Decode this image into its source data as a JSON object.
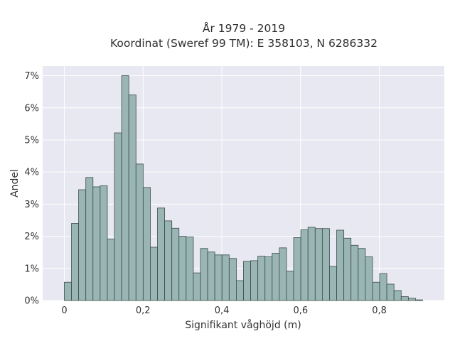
{
  "chart_data": {
    "type": "bar",
    "title_lines": [
      "År 1979 - 2019",
      "Koordinat (Sweref 99 TM): E 358103, N 6286332"
    ],
    "xlabel": "Signifikant våghöjd (m)",
    "ylabel": "Andel",
    "xlim": [
      -0.055,
      0.965
    ],
    "ylim": [
      0,
      7.3
    ],
    "x_ticks": [
      0,
      0.2,
      0.4,
      0.6,
      0.8
    ],
    "x_tick_labels": [
      "0",
      "0,2",
      "0,4",
      "0,6",
      "0,8"
    ],
    "y_ticks": [
      0,
      1,
      2,
      3,
      4,
      5,
      6,
      7
    ],
    "y_tick_labels": [
      "0%",
      "1%",
      "2%",
      "3%",
      "4%",
      "5%",
      "6%",
      "7%"
    ],
    "grid": true,
    "bin_start": 0,
    "bin_width": 0.0182,
    "values": [
      0.57,
      2.4,
      3.45,
      3.83,
      3.54,
      3.57,
      1.91,
      5.22,
      7.0,
      6.4,
      4.25,
      3.52,
      1.66,
      2.88,
      2.48,
      2.25,
      2.0,
      1.98,
      0.86,
      1.62,
      1.51,
      1.42,
      1.42,
      1.31,
      0.62,
      1.22,
      1.24,
      1.38,
      1.36,
      1.47,
      1.64,
      0.91,
      1.96,
      2.2,
      2.28,
      2.24,
      2.24,
      1.06,
      2.19,
      1.94,
      1.72,
      1.62,
      1.36,
      0.57,
      0.84,
      0.51,
      0.31,
      0.12,
      0.07,
      0.02
    ],
    "unit": "%",
    "colors": {
      "background": "#e7e8f1",
      "bar_fill": "#9ab6b4",
      "bar_edge": "#3a4a48",
      "grid": "#ffffff"
    }
  }
}
